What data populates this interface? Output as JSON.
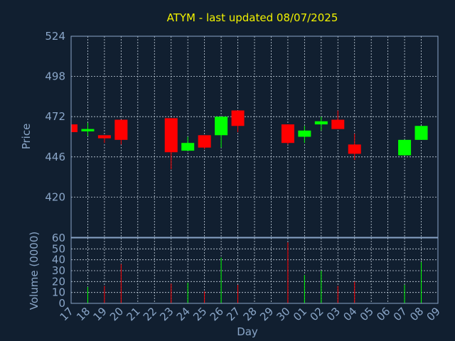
{
  "chart_data": {
    "type": "candlestick",
    "title": "ATYM - last updated 08/07/2025",
    "xlabel": "Day",
    "price_panel": {
      "ylabel": "Price",
      "ylim": [
        394,
        524
      ],
      "yticks": [
        420,
        446,
        472,
        498,
        524
      ]
    },
    "volume_panel": {
      "ylabel": "Volume (0000)",
      "ylim": [
        0,
        60
      ],
      "yticks": [
        0,
        10,
        20,
        30,
        40,
        50,
        60
      ]
    },
    "x_tick_labels": [
      "17",
      "18",
      "19",
      "20",
      "21",
      "22",
      "23",
      "24",
      "25",
      "26",
      "27",
      "28",
      "29",
      "30",
      "01",
      "02",
      "03",
      "04",
      "05",
      "06",
      "07",
      "08",
      "09"
    ],
    "up_color": "#00ff00",
    "down_color": "#ff0000",
    "grid": true,
    "candles": [
      {
        "day": "17",
        "open": 467,
        "high": 467,
        "low": 462,
        "close": 462,
        "volume": 0
      },
      {
        "day": "18",
        "open": 462.5,
        "high": 468,
        "low": 459.5,
        "close": 464,
        "volume": 15
      },
      {
        "day": "19",
        "open": 460,
        "high": 460,
        "low": 455,
        "close": 458,
        "volume": 16
      },
      {
        "day": "20",
        "open": 470,
        "high": 470,
        "low": 454,
        "close": 457,
        "volume": 36
      },
      {
        "day": "23",
        "open": 471,
        "high": 471,
        "low": 438,
        "close": 449,
        "volume": 18
      },
      {
        "day": "24",
        "open": 450,
        "high": 459,
        "low": 450,
        "close": 455,
        "volume": 19
      },
      {
        "day": "25",
        "open": 460,
        "high": 460,
        "low": 451,
        "close": 452,
        "volume": 11
      },
      {
        "day": "26",
        "open": 460,
        "high": 472,
        "low": 452,
        "close": 472,
        "volume": 42
      },
      {
        "day": "27",
        "open": 476,
        "high": 476,
        "low": 462,
        "close": 466,
        "volume": 17
      },
      {
        "day": "30",
        "open": 467,
        "high": 467,
        "low": 454,
        "close": 455,
        "volume": 56
      },
      {
        "day": "01",
        "open": 459,
        "high": 466,
        "low": 455,
        "close": 463,
        "volume": 26
      },
      {
        "day": "02",
        "open": 467,
        "high": 472,
        "low": 463,
        "close": 469,
        "volume": 30
      },
      {
        "day": "03",
        "open": 470,
        "high": 476,
        "low": 464,
        "close": 464,
        "volume": 16
      },
      {
        "day": "04",
        "open": 454,
        "high": 461,
        "low": 444,
        "close": 448,
        "volume": 20
      },
      {
        "day": "07",
        "open": 447,
        "high": 457,
        "low": 447,
        "close": 457,
        "volume": 17
      },
      {
        "day": "08",
        "open": 457,
        "high": 466,
        "low": 457,
        "close": 466,
        "volume": 38
      }
    ]
  }
}
